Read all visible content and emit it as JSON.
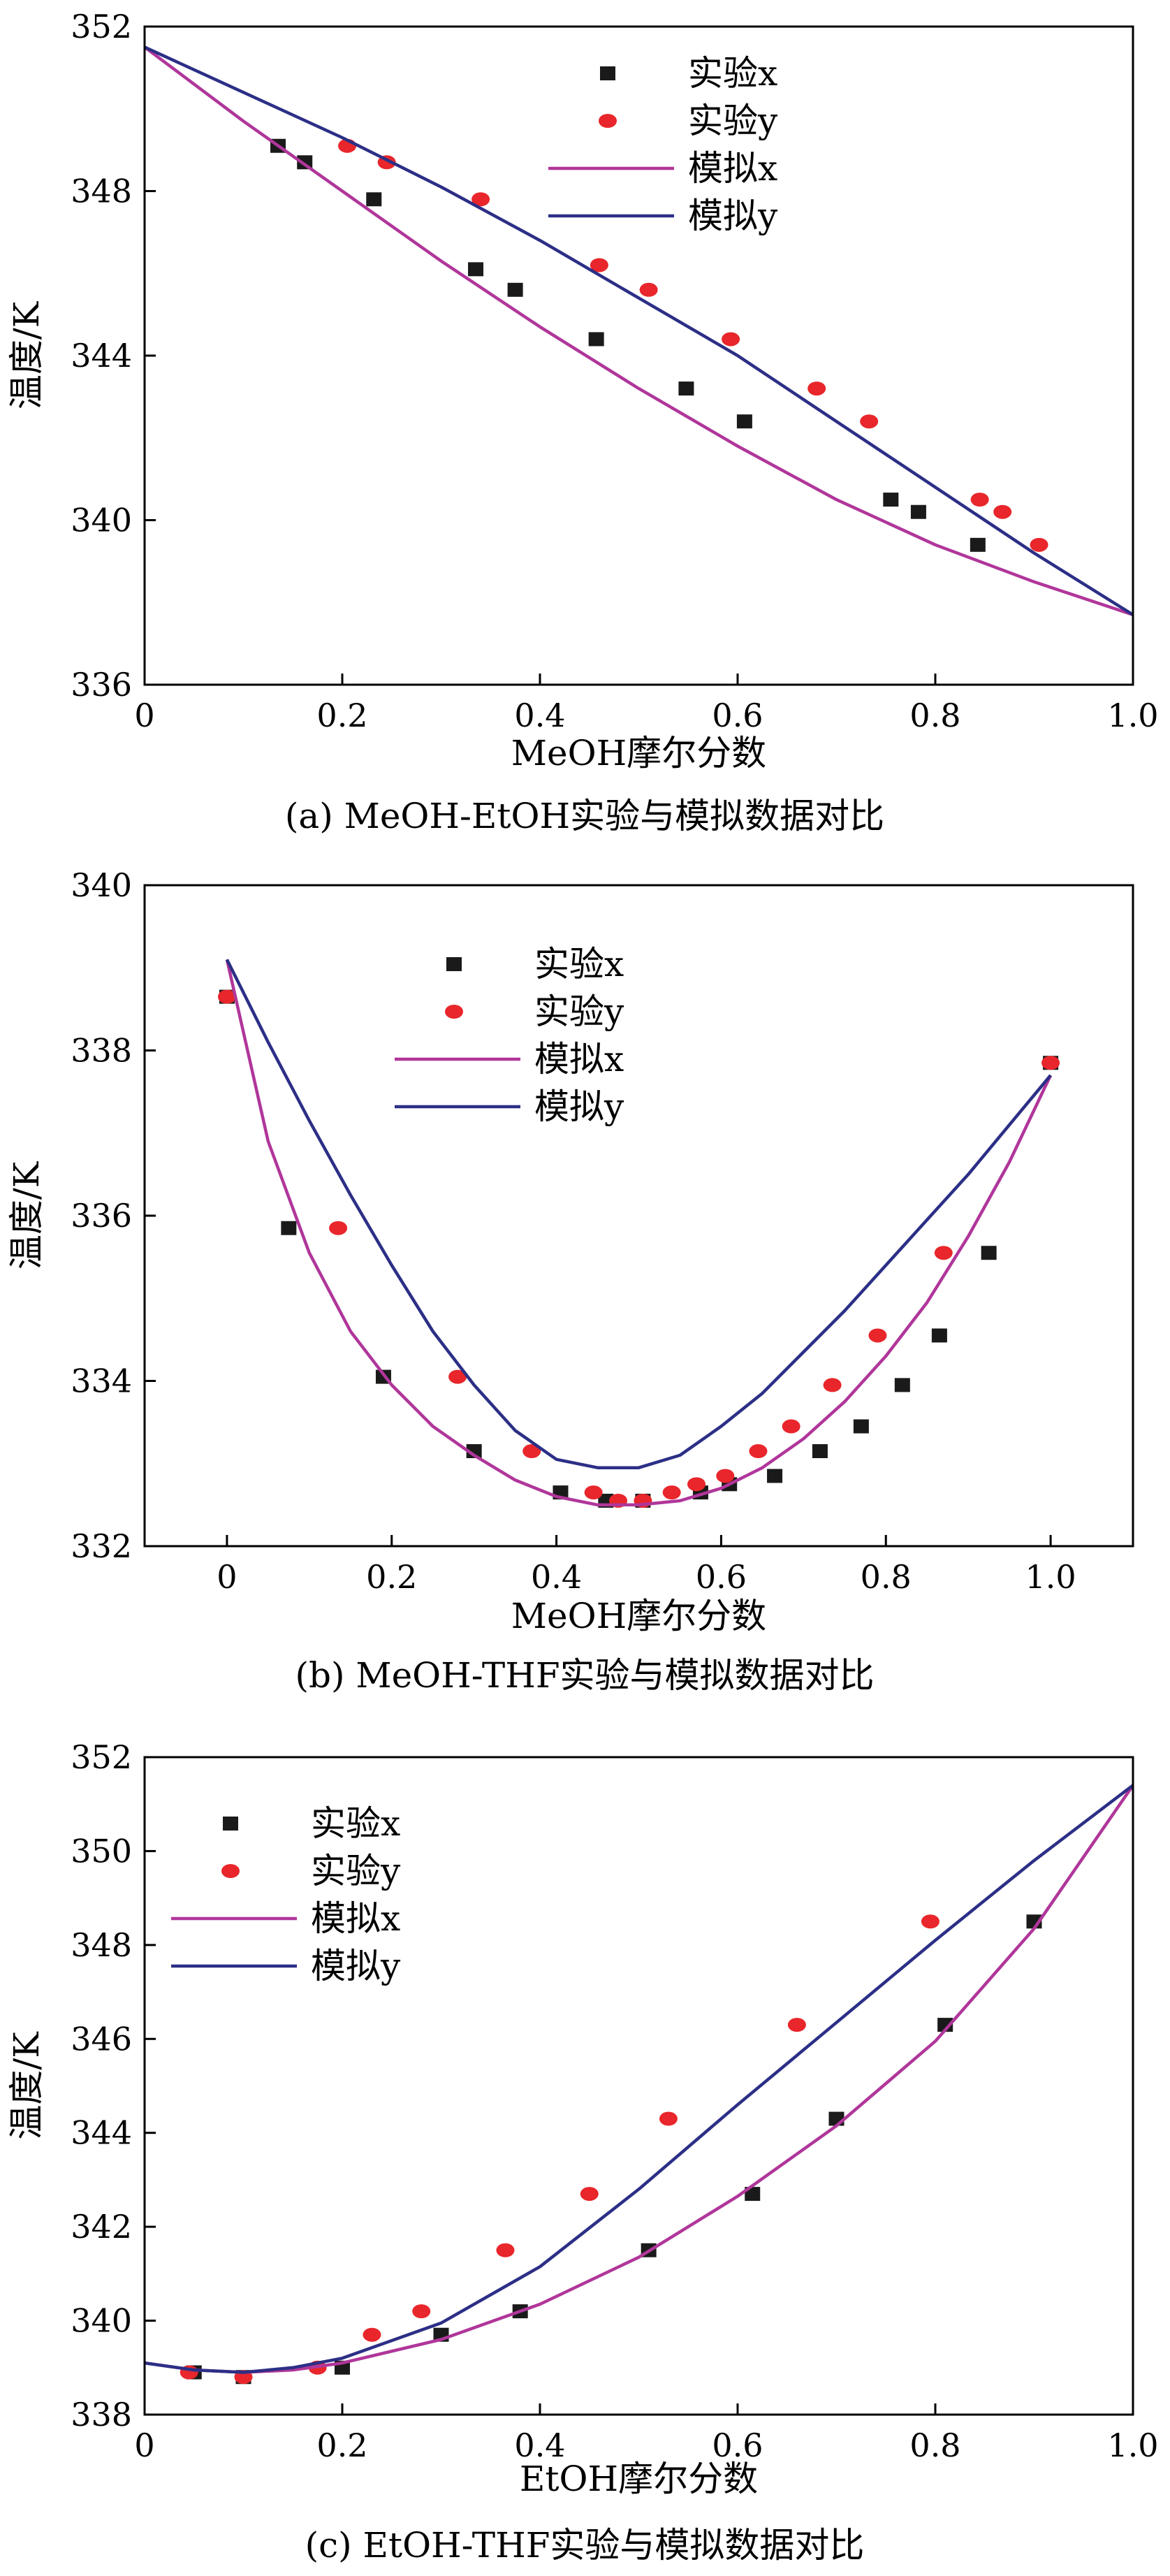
{
  "colors": {
    "exp_x": "#1a1a1a",
    "exp_y": "#e8262b",
    "sim_x": "#b0369a",
    "sim_y": "#2c2f86"
  },
  "chart_data": [
    {
      "type": "scatter",
      "caption": "(a) MeOH-EtOH实验与模拟数据对比",
      "xlabel": "MeOH摩尔分数",
      "ylabel": "温度/K",
      "xlim": [
        0,
        1.0
      ],
      "ylim": [
        336,
        352
      ],
      "xticks": [
        0,
        0.2,
        0.4,
        0.6,
        0.8,
        1.0
      ],
      "xtick_labels": [
        "0",
        "0.2",
        "0.4",
        "0.6",
        "0.8",
        "1.0"
      ],
      "yticks": [
        336,
        340,
        344,
        348,
        352
      ],
      "ytick_labels": [
        "336",
        "340",
        "344",
        "348",
        "352"
      ],
      "legend_position": "top-center",
      "series": [
        {
          "name": "实验x",
          "kind": "square-markers",
          "x": [
            0.135,
            0.162,
            0.232,
            0.335,
            0.375,
            0.457,
            0.548,
            0.607,
            0.755,
            0.783,
            0.843
          ],
          "y": [
            349.1,
            348.7,
            347.8,
            346.1,
            345.6,
            344.4,
            343.2,
            342.4,
            340.5,
            340.2,
            339.4
          ]
        },
        {
          "name": "实验y",
          "kind": "ellipse-markers",
          "x": [
            0.205,
            0.245,
            0.34,
            0.46,
            0.51,
            0.593,
            0.68,
            0.733,
            0.845,
            0.868,
            0.905
          ],
          "y": [
            349.1,
            348.7,
            347.8,
            346.2,
            345.6,
            344.4,
            343.2,
            342.4,
            340.5,
            340.2,
            339.4
          ]
        },
        {
          "name": "模拟x",
          "kind": "line",
          "x": [
            0,
            0.1,
            0.2,
            0.3,
            0.4,
            0.5,
            0.6,
            0.7,
            0.8,
            0.9,
            1.0
          ],
          "y": [
            351.5,
            349.7,
            348.0,
            346.3,
            344.7,
            343.2,
            341.8,
            340.5,
            339.4,
            338.5,
            337.7
          ]
        },
        {
          "name": "模拟y",
          "kind": "line",
          "x": [
            0,
            0.1,
            0.2,
            0.3,
            0.4,
            0.5,
            0.6,
            0.7,
            0.8,
            0.9,
            1.0
          ],
          "y": [
            351.5,
            350.4,
            349.3,
            348.1,
            346.8,
            345.4,
            344.0,
            342.4,
            340.8,
            339.2,
            337.7
          ]
        }
      ]
    },
    {
      "type": "scatter",
      "caption": "(b) MeOH-THF实验与模拟数据对比",
      "xlabel": "MeOH摩尔分数",
      "ylabel": "温度/K",
      "xlim": [
        -0.1,
        1.1
      ],
      "ylim": [
        332,
        340
      ],
      "xticks": [
        0,
        0.2,
        0.4,
        0.6,
        0.8,
        1.0
      ],
      "xtick_labels": [
        "0",
        "0.2",
        "0.4",
        "0.6",
        "0.8",
        "1.0"
      ],
      "yticks": [
        332,
        334,
        336,
        338,
        340
      ],
      "ytick_labels": [
        "332",
        "334",
        "336",
        "338",
        "340"
      ],
      "legend_position": "top-center",
      "series": [
        {
          "name": "实验x",
          "kind": "square-markers",
          "x": [
            0.0,
            0.075,
            0.19,
            0.3,
            0.405,
            0.46,
            0.505,
            0.575,
            0.61,
            0.665,
            0.72,
            0.77,
            0.82,
            0.865,
            0.925,
            1.0
          ],
          "y": [
            338.65,
            335.85,
            334.05,
            333.15,
            332.65,
            332.55,
            332.55,
            332.65,
            332.75,
            332.85,
            333.15,
            333.45,
            333.95,
            334.55,
            335.55,
            337.85
          ]
        },
        {
          "name": "实验y",
          "kind": "ellipse-markers",
          "x": [
            0.0,
            0.135,
            0.28,
            0.37,
            0.445,
            0.475,
            0.505,
            0.54,
            0.57,
            0.605,
            0.645,
            0.685,
            0.735,
            0.79,
            0.87,
            1.0
          ],
          "y": [
            338.65,
            335.85,
            334.05,
            333.15,
            332.65,
            332.55,
            332.55,
            332.65,
            332.75,
            332.85,
            333.15,
            333.45,
            333.95,
            334.55,
            335.55,
            337.85
          ]
        },
        {
          "name": "模拟x",
          "kind": "line",
          "x": [
            0,
            0.05,
            0.1,
            0.15,
            0.2,
            0.25,
            0.3,
            0.35,
            0.4,
            0.45,
            0.5,
            0.55,
            0.6,
            0.65,
            0.7,
            0.75,
            0.8,
            0.85,
            0.9,
            0.95,
            1.0
          ],
          "y": [
            339.1,
            336.9,
            335.55,
            334.6,
            333.95,
            333.45,
            333.1,
            332.8,
            332.6,
            332.5,
            332.5,
            332.55,
            332.7,
            332.95,
            333.3,
            333.75,
            334.3,
            334.95,
            335.75,
            336.65,
            337.7
          ]
        },
        {
          "name": "模拟y",
          "kind": "line",
          "x": [
            0,
            0.05,
            0.1,
            0.15,
            0.2,
            0.25,
            0.3,
            0.35,
            0.4,
            0.45,
            0.5,
            0.55,
            0.6,
            0.65,
            0.7,
            0.75,
            0.8,
            0.85,
            0.9,
            0.95,
            1.0
          ],
          "y": [
            339.1,
            338.1,
            337.15,
            336.25,
            335.4,
            334.6,
            333.95,
            333.4,
            333.05,
            332.95,
            332.95,
            333.1,
            333.45,
            333.85,
            334.35,
            334.85,
            335.4,
            335.95,
            336.5,
            337.1,
            337.7
          ]
        }
      ]
    },
    {
      "type": "scatter",
      "caption": "(c) EtOH-THF实验与模拟数据对比",
      "xlabel": "EtOH摩尔分数",
      "ylabel": "温度/K",
      "xlim": [
        0,
        1.0
      ],
      "ylim": [
        338,
        352
      ],
      "xticks": [
        0,
        0.2,
        0.4,
        0.6,
        0.8,
        1.0
      ],
      "xtick_labels": [
        "0",
        "0.2",
        "0.4",
        "0.6",
        "0.8",
        "1.0"
      ],
      "yticks": [
        338,
        340,
        342,
        344,
        346,
        348,
        350,
        352
      ],
      "ytick_labels": [
        "338",
        "340",
        "342",
        "344",
        "346",
        "348",
        "350",
        "352"
      ],
      "legend_position": "top-left",
      "series": [
        {
          "name": "实验x",
          "kind": "square-markers",
          "x": [
            0.05,
            0.1,
            0.2,
            0.3,
            0.38,
            0.51,
            0.615,
            0.7,
            0.81,
            0.9
          ],
          "y": [
            338.9,
            338.8,
            339.0,
            339.7,
            340.2,
            341.5,
            342.7,
            344.3,
            346.3,
            348.5
          ]
        },
        {
          "name": "实验y",
          "kind": "ellipse-markers",
          "x": [
            0.045,
            0.1,
            0.175,
            0.23,
            0.28,
            0.365,
            0.45,
            0.53,
            0.66,
            0.795
          ],
          "y": [
            338.9,
            338.8,
            339.0,
            339.7,
            340.2,
            341.5,
            342.7,
            344.3,
            346.3,
            348.5
          ]
        },
        {
          "name": "模拟x",
          "kind": "line",
          "x": [
            0,
            0.05,
            0.1,
            0.15,
            0.2,
            0.3,
            0.4,
            0.5,
            0.6,
            0.7,
            0.8,
            0.9,
            1.0
          ],
          "y": [
            339.1,
            338.95,
            338.9,
            338.95,
            339.1,
            339.6,
            340.35,
            341.35,
            342.65,
            344.15,
            345.95,
            348.35,
            351.4
          ]
        },
        {
          "name": "模拟y",
          "kind": "line",
          "x": [
            0,
            0.05,
            0.1,
            0.15,
            0.2,
            0.3,
            0.4,
            0.5,
            0.6,
            0.7,
            0.8,
            0.9,
            1.0
          ],
          "y": [
            339.1,
            338.95,
            338.9,
            339.0,
            339.2,
            339.95,
            341.15,
            342.8,
            344.6,
            346.35,
            348.1,
            349.8,
            351.4
          ]
        }
      ]
    }
  ]
}
